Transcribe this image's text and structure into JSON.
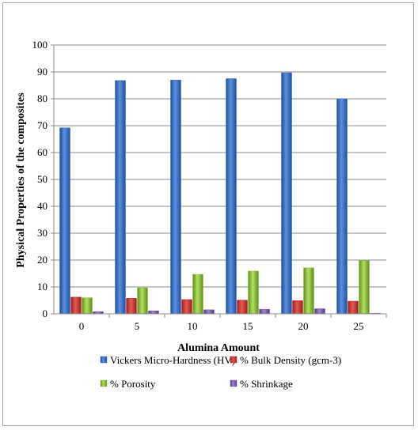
{
  "chart_data": {
    "type": "bar",
    "xlabel": "Alumina Amount",
    "ylabel": "Physical Properties of the composites",
    "categories": [
      "0",
      "5",
      "10",
      "15",
      "20",
      "25"
    ],
    "ylim": [
      0,
      100
    ],
    "yticks": [
      "0",
      "10",
      "20",
      "30",
      "40",
      "50",
      "60",
      "70",
      "80",
      "90",
      "100"
    ],
    "grid": true,
    "legend_position": "bottom",
    "series": [
      {
        "name": "Vickers Micro-Hardness (HV)",
        "color": "#3b6fc9",
        "values": [
          69.2,
          86.8,
          87.0,
          87.5,
          89.7,
          80.0
        ]
      },
      {
        "name": "% Bulk Density (gcm-3)",
        "color": "#c9302c",
        "values": [
          6.2,
          5.8,
          5.3,
          5.1,
          4.9,
          4.7
        ]
      },
      {
        "name": "% Porosity",
        "color": "#8fc23c",
        "values": [
          6.0,
          9.7,
          14.7,
          15.9,
          17.1,
          19.8
        ]
      },
      {
        "name": "% Shrinkage",
        "color": "#7a5ea8",
        "values": [
          0.8,
          1.1,
          1.5,
          1.7,
          1.9,
          0.2
        ]
      }
    ]
  }
}
